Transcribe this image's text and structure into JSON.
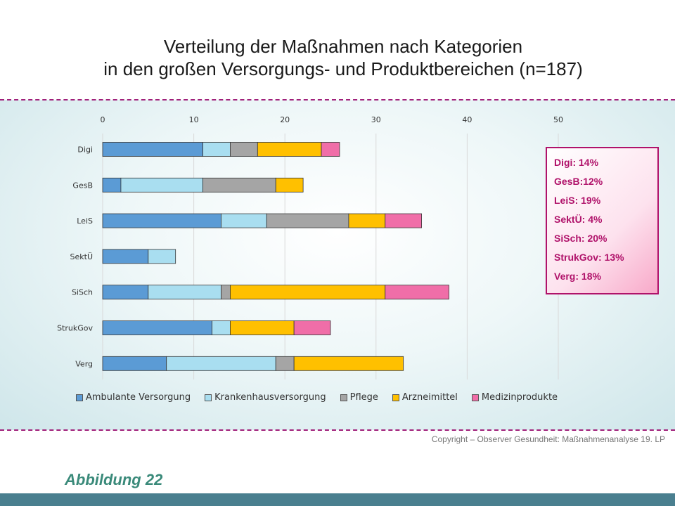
{
  "title_line1": "Verteilung der Maßnahmen nach Kategorien",
  "title_line2": "in den großen Versorgungs- und Produktbereichen (n=187)",
  "chart_data": {
    "type": "bar",
    "orientation": "horizontal",
    "stacked": true,
    "categories": [
      "Digi",
      "GesB",
      "LeiS",
      "SektÜ",
      "SiSch",
      "StrukGov",
      "Verg"
    ],
    "xlim": [
      0,
      50
    ],
    "xticks": [
      0,
      10,
      20,
      30,
      40,
      50
    ],
    "grid": true,
    "legend_position": "bottom",
    "series": [
      {
        "name": "Ambulante Versorgung",
        "color": "#5b9bd5",
        "values": [
          11,
          2,
          13,
          5,
          5,
          12,
          7
        ]
      },
      {
        "name": "Krankenhausversorgung",
        "color": "#a9def0",
        "values": [
          3,
          9,
          5,
          3,
          8,
          2,
          12
        ]
      },
      {
        "name": "Pflege",
        "color": "#a5a5a5",
        "values": [
          3,
          8,
          9,
          0,
          1,
          0,
          2
        ]
      },
      {
        "name": "Arzneimittel",
        "color": "#ffc000",
        "values": [
          7,
          3,
          4,
          0,
          17,
          7,
          12
        ]
      },
      {
        "name": "Medizinprodukte",
        "color": "#f06ea8",
        "values": [
          2,
          0,
          4,
          0,
          7,
          4,
          0
        ]
      }
    ]
  },
  "infobox": [
    "Digi: 14%",
    "GesB:12%",
    "LeiS: 19%",
    "SektÜ: 4%",
    "SiSch: 20%",
    "StrukGov: 13%",
    "Verg: 18%"
  ],
  "copyright": "Copyright – Observer Gesundheit: Maßnahmenanalyse 19. LP",
  "figure_label": "Abbildung 22"
}
